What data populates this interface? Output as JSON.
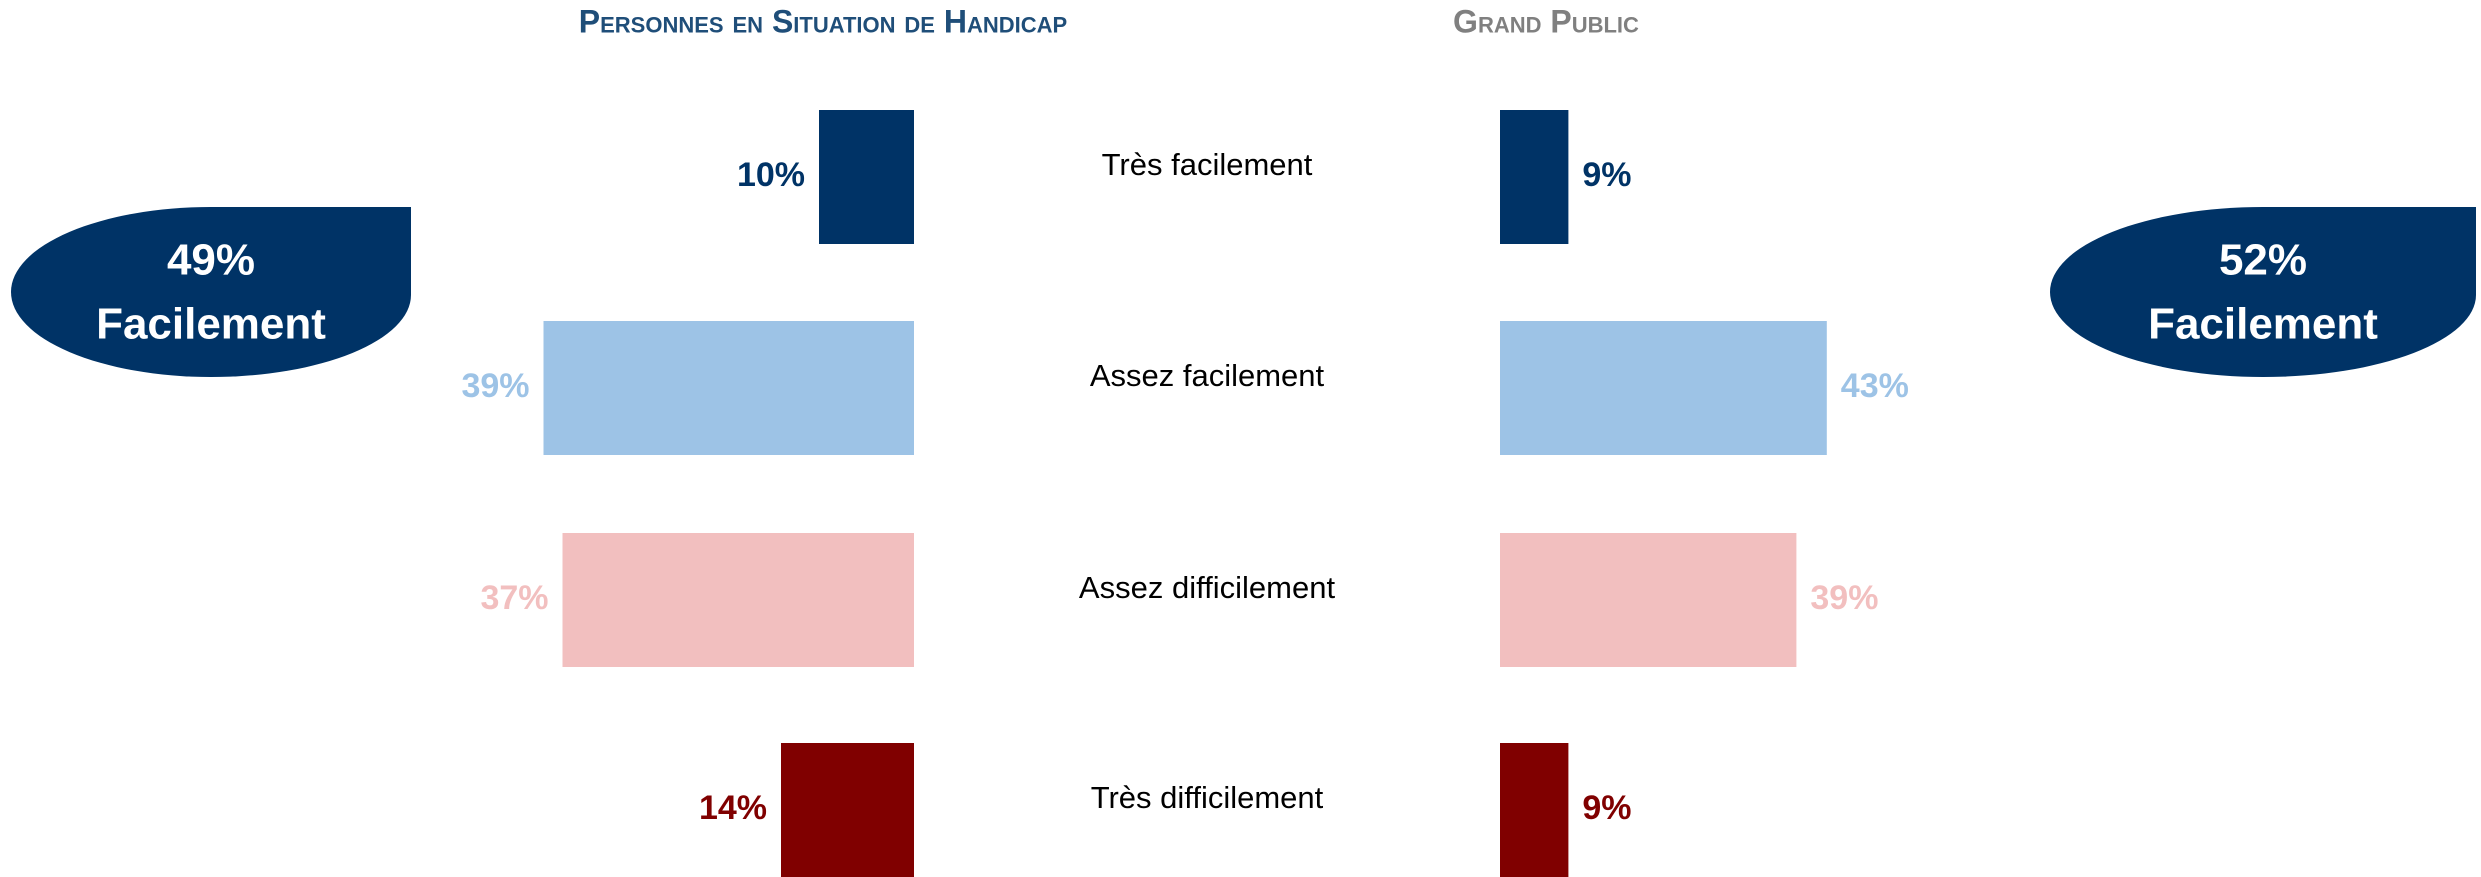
{
  "chart_data": {
    "type": "bar",
    "categories": [
      "Très facilement",
      "Assez facilement",
      "Assez difficilement",
      "Très difficilement"
    ],
    "colors": [
      "#003366",
      "#9dc3e6",
      "#f2bfbf",
      "#800000"
    ],
    "series": [
      {
        "name": "Personnes en Situation de Handicap",
        "color": "#1f4e79",
        "values": [
          10,
          39,
          37,
          14
        ],
        "value_labels": [
          "10%",
          "39%",
          "37%",
          "14%"
        ],
        "summary": {
          "value": 49,
          "label": "49%",
          "text": "Facilement"
        }
      },
      {
        "name": "Grand Public",
        "color": "#808080",
        "values": [
          9,
          43,
          39,
          9
        ],
        "value_labels": [
          "9%",
          "43%",
          "39%",
          "9%"
        ],
        "summary": {
          "value": 52,
          "label": "52%",
          "text": "Facilement"
        }
      }
    ]
  }
}
